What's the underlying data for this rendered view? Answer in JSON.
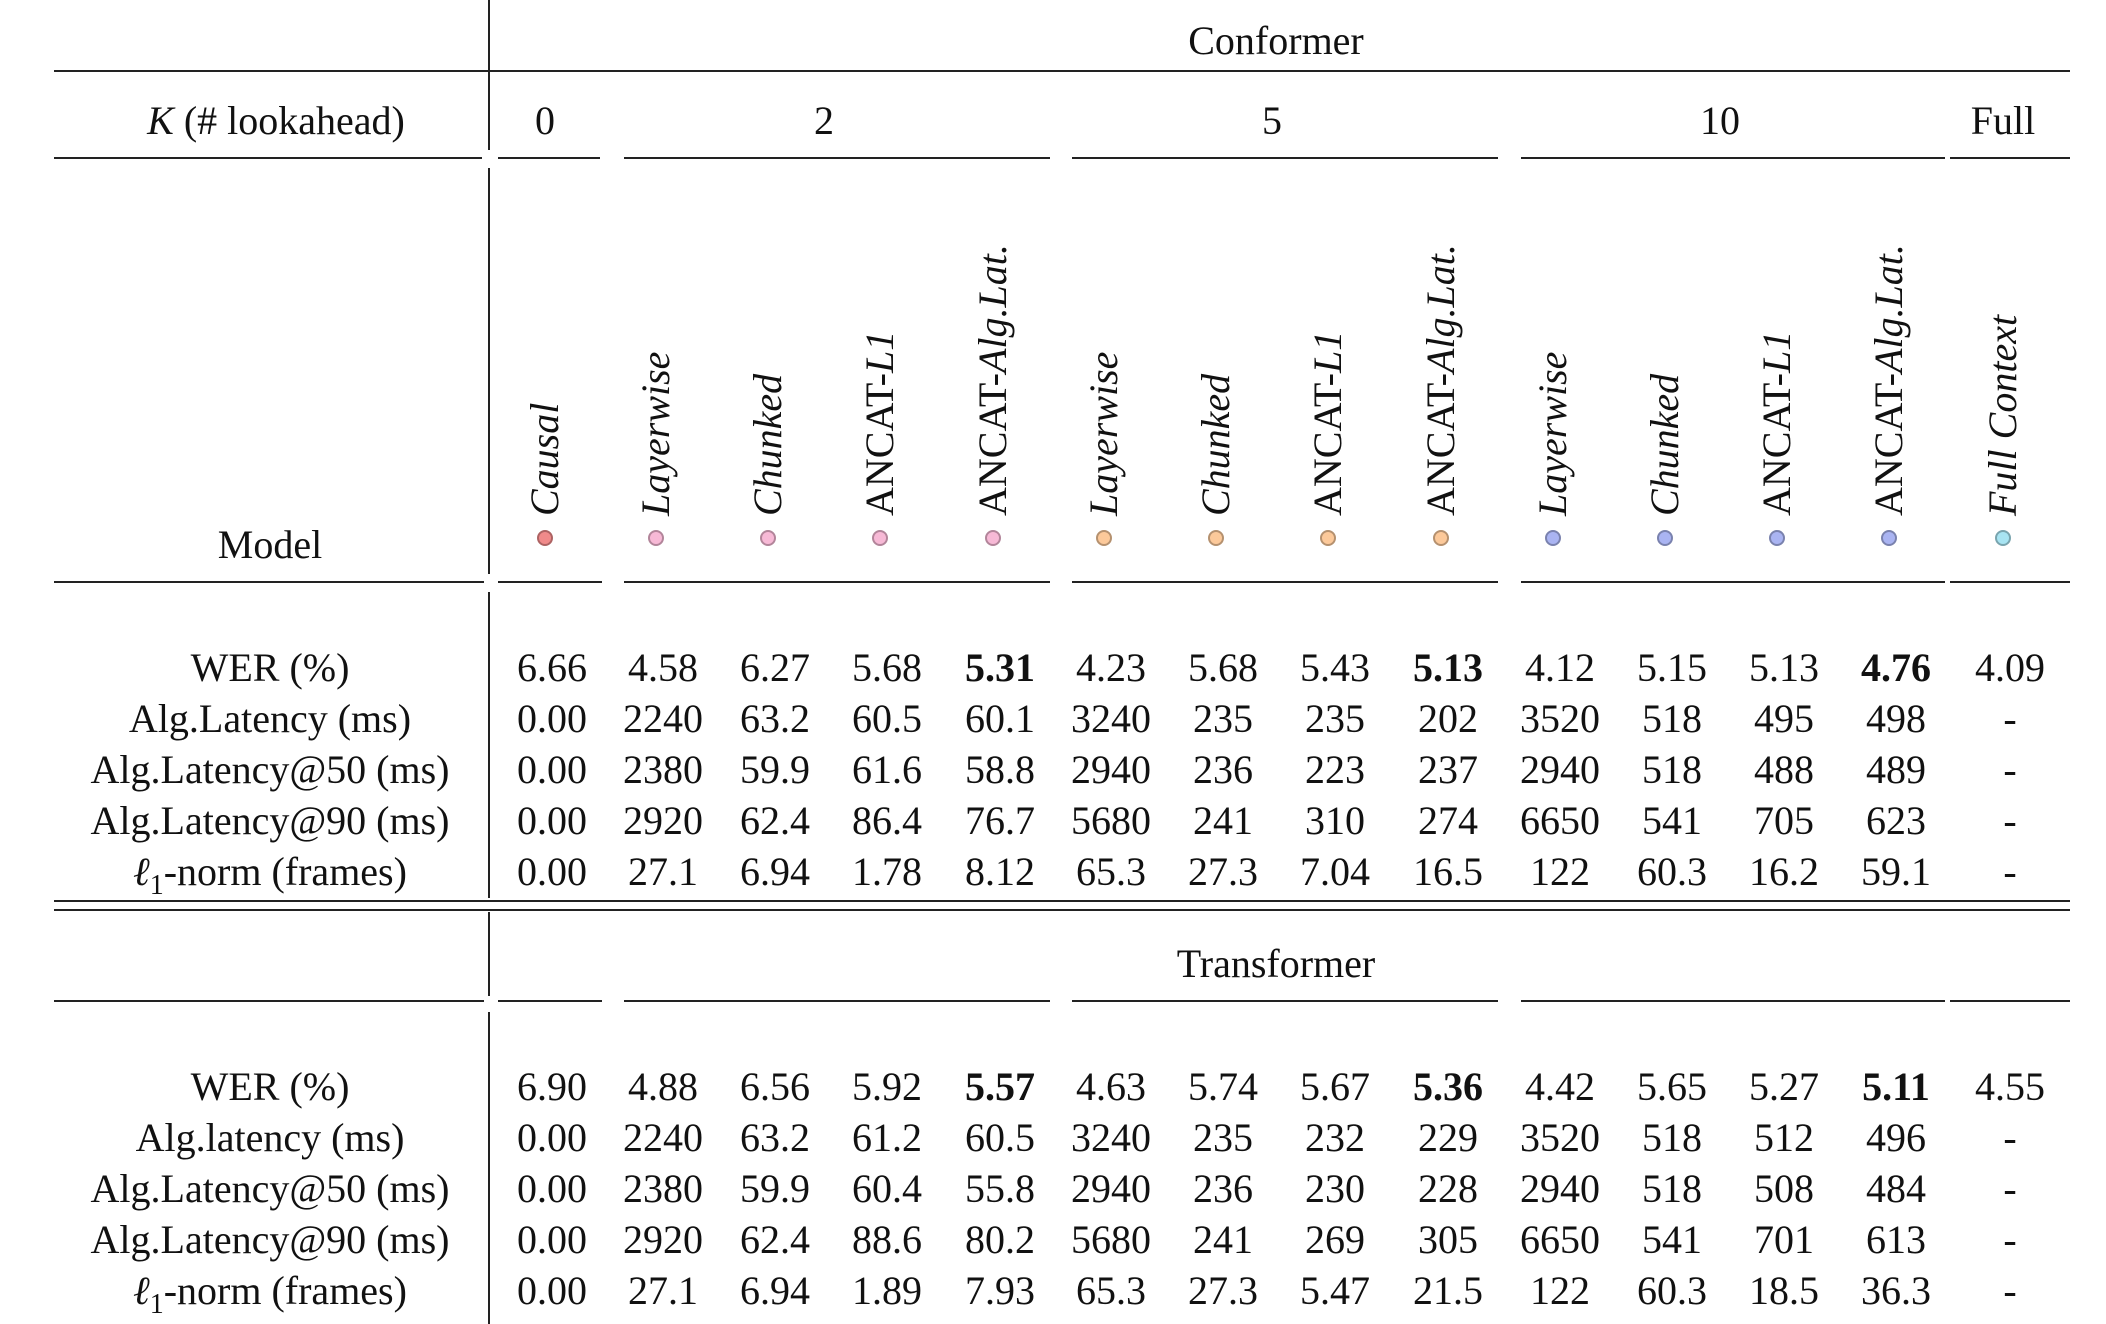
{
  "conformer_title": "Conformer",
  "transformer_title": "Transformer",
  "lookahead_label": "K (# lookahead)",
  "lookahead_label_k": "K",
  "lookahead_label_rest": " (# lookahead)",
  "model_label": "Model",
  "groups": [
    "0",
    "2",
    "5",
    "10",
    "Full"
  ],
  "methods": [
    {
      "name": "Causal",
      "italic": true,
      "color": "#f08a8a"
    },
    {
      "name": "Layerwise",
      "italic": true,
      "color": "#f7b9d6"
    },
    {
      "name": "Chunked",
      "italic": true,
      "color": "#f7b9d6"
    },
    {
      "name": "ANCAT-L1",
      "italic": false,
      "color": "#f7b9d6",
      "prefix": "ANCAT-",
      "suffix": "L1"
    },
    {
      "name": "ANCAT-Alg.Lat.",
      "italic": false,
      "color": "#f7b9d6",
      "prefix": "ANCAT-",
      "suffix": "Alg.Lat."
    },
    {
      "name": "Layerwise",
      "italic": true,
      "color": "#fcc99a"
    },
    {
      "name": "Chunked",
      "italic": true,
      "color": "#fcc99a"
    },
    {
      "name": "ANCAT-L1",
      "italic": false,
      "color": "#fcc99a",
      "prefix": "ANCAT-",
      "suffix": "L1"
    },
    {
      "name": "ANCAT-Alg.Lat.",
      "italic": false,
      "color": "#fcc99a",
      "prefix": "ANCAT-",
      "suffix": "Alg.Lat."
    },
    {
      "name": "Layerwise",
      "italic": true,
      "color": "#aab4f2"
    },
    {
      "name": "Chunked",
      "italic": true,
      "color": "#aab4f2"
    },
    {
      "name": "ANCAT-L1",
      "italic": false,
      "color": "#aab4f2",
      "prefix": "ANCAT-",
      "suffix": "L1"
    },
    {
      "name": "ANCAT-Alg.Lat.",
      "italic": false,
      "color": "#aab4f2",
      "prefix": "ANCAT-",
      "suffix": "Alg.Lat."
    },
    {
      "name": "Full Context",
      "italic": true,
      "color": "#a8e4f2"
    }
  ],
  "conformer_rows": [
    {
      "label": "WER (%)",
      "values": [
        "6.66",
        "4.58",
        "6.27",
        "5.68",
        "5.31",
        "4.23",
        "5.68",
        "5.43",
        "5.13",
        "4.12",
        "5.15",
        "5.13",
        "4.76",
        "4.09"
      ],
      "bold": [
        4,
        8,
        12
      ]
    },
    {
      "label": "Alg.Latency (ms)",
      "values": [
        "0.00",
        "2240",
        "63.2",
        "60.5",
        "60.1",
        "3240",
        "235",
        "235",
        "202",
        "3520",
        "518",
        "495",
        "498",
        "-"
      ],
      "bold": []
    },
    {
      "label": "Alg.Latency@50 (ms)",
      "values": [
        "0.00",
        "2380",
        "59.9",
        "61.6",
        "58.8",
        "2940",
        "236",
        "223",
        "237",
        "2940",
        "518",
        "488",
        "489",
        "-"
      ],
      "bold": []
    },
    {
      "label": "Alg.Latency@90 (ms)",
      "values": [
        "0.00",
        "2920",
        "62.4",
        "86.4",
        "76.7",
        "5680",
        "241",
        "310",
        "274",
        "6650",
        "541",
        "705",
        "623",
        "-"
      ],
      "bold": []
    },
    {
      "label": "ℓ1-norm (frames)",
      "label_main": "ℓ",
      "label_sub": "1",
      "label_rest": "-norm (frames)",
      "values": [
        "0.00",
        "27.1",
        "6.94",
        "1.78",
        "8.12",
        "65.3",
        "27.3",
        "7.04",
        "16.5",
        "122",
        "60.3",
        "16.2",
        "59.1",
        "-"
      ],
      "bold": []
    }
  ],
  "transformer_rows": [
    {
      "label": "WER (%)",
      "values": [
        "6.90",
        "4.88",
        "6.56",
        "5.92",
        "5.57",
        "4.63",
        "5.74",
        "5.67",
        "5.36",
        "4.42",
        "5.65",
        "5.27",
        "5.11",
        "4.55"
      ],
      "bold": [
        4,
        8,
        12
      ]
    },
    {
      "label": "Alg.latency (ms)",
      "values": [
        "0.00",
        "2240",
        "63.2",
        "61.2",
        "60.5",
        "3240",
        "235",
        "232",
        "229",
        "3520",
        "518",
        "512",
        "496",
        "-"
      ],
      "bold": []
    },
    {
      "label": "Alg.Latency@50 (ms)",
      "values": [
        "0.00",
        "2380",
        "59.9",
        "60.4",
        "55.8",
        "2940",
        "236",
        "230",
        "228",
        "2940",
        "518",
        "508",
        "484",
        "-"
      ],
      "bold": []
    },
    {
      "label": "Alg.Latency@90 (ms)",
      "values": [
        "0.00",
        "2920",
        "62.4",
        "88.6",
        "80.2",
        "5680",
        "241",
        "269",
        "305",
        "6650",
        "541",
        "701",
        "613",
        "-"
      ],
      "bold": []
    },
    {
      "label": "ℓ1-norm (frames)",
      "label_main": "ℓ",
      "label_sub": "1",
      "label_rest": "-norm (frames)",
      "values": [
        "0.00",
        "27.1",
        "6.94",
        "1.89",
        "7.93",
        "65.3",
        "27.3",
        "5.47",
        "21.5",
        "122",
        "60.3",
        "18.5",
        "36.3",
        "-"
      ],
      "bold": []
    }
  ]
}
